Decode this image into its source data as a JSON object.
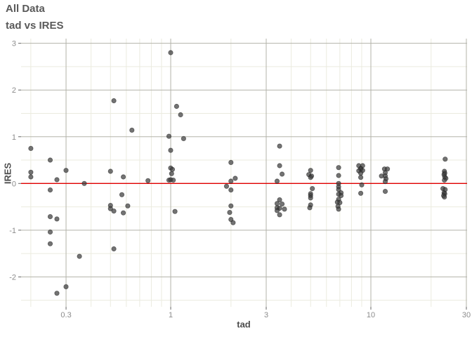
{
  "header": {
    "title": "All Data",
    "subtitle": "tad vs IRES"
  },
  "chart_data": {
    "type": "scatter",
    "title": "All Data",
    "subtitle": "tad vs IRES",
    "xlabel": "tad",
    "ylabel": "IRES",
    "x_scale": "log10",
    "xlim": [
      0.1788,
      30.25
    ],
    "ylim": [
      -2.64,
      3.1
    ],
    "x_ticks": [
      0.3,
      1,
      3,
      10,
      30
    ],
    "x_tick_labels": [
      "0.3",
      "1",
      "3",
      "10",
      "30"
    ],
    "x_minor": [
      0.2,
      0.4,
      0.5,
      0.6,
      0.7,
      0.8,
      0.9,
      2,
      4,
      5,
      6,
      7,
      8,
      9,
      20
    ],
    "y_ticks": [
      3,
      2,
      1,
      0,
      -1,
      -2
    ],
    "y_tick_labels": [
      "3",
      "2",
      "1",
      "0",
      "-1",
      "-2"
    ],
    "y_minor": [
      2.5,
      1.5,
      0.5,
      -0.5,
      -1.5,
      -2.5
    ],
    "grid": "on",
    "legend": "none",
    "reference_line": {
      "y": 0,
      "color": "#e10000"
    },
    "colors": {
      "background": "#ffffff",
      "title": "#595959",
      "axis_label": "#4d4d4d",
      "tick_label": "#8c8c8c",
      "tick_mark": "#666666",
      "grid_major": "#b3b3aa",
      "grid_minor": "#ebebdf",
      "point_fill": "#3d3d3d",
      "point_stroke": "#1f1f1f"
    },
    "point_opacity": 0.72,
    "point_radius": 3.2,
    "points": [
      [
        0.2,
        0.75
      ],
      [
        0.2,
        0.24
      ],
      [
        0.2,
        0.14
      ],
      [
        0.25,
        0.5
      ],
      [
        0.25,
        -0.14
      ],
      [
        0.25,
        -0.71
      ],
      [
        0.25,
        -1.04
      ],
      [
        0.25,
        -1.29
      ],
      [
        0.27,
        0.08
      ],
      [
        0.27,
        -0.76
      ],
      [
        0.27,
        -2.35
      ],
      [
        0.3,
        0.28
      ],
      [
        0.3,
        -2.21
      ],
      [
        0.35,
        -1.56
      ],
      [
        0.37,
        0.0
      ],
      [
        0.5,
        0.26
      ],
      [
        0.5,
        -0.47
      ],
      [
        0.5,
        -0.54
      ],
      [
        0.52,
        1.77
      ],
      [
        0.52,
        -0.59
      ],
      [
        0.52,
        -1.4
      ],
      [
        0.57,
        -0.24
      ],
      [
        0.58,
        0.14
      ],
      [
        0.58,
        -0.63
      ],
      [
        0.61,
        -0.48
      ],
      [
        0.64,
        1.14
      ],
      [
        0.77,
        0.06
      ],
      [
        0.98,
        1.01
      ],
      [
        1.0,
        2.8
      ],
      [
        1.0,
        0.71
      ],
      [
        1.0,
        0.33
      ],
      [
        1.02,
        0.3
      ],
      [
        1.01,
        0.21
      ],
      [
        0.98,
        0.07
      ],
      [
        1.0,
        0.08
      ],
      [
        1.03,
        0.07
      ],
      [
        1.05,
        -0.6
      ],
      [
        1.07,
        1.65
      ],
      [
        1.12,
        1.47
      ],
      [
        1.16,
        0.96
      ],
      [
        2.0,
        0.45
      ],
      [
        2.1,
        0.11
      ],
      [
        2.0,
        0.05
      ],
      [
        1.9,
        -0.06
      ],
      [
        2.0,
        -0.14
      ],
      [
        2.0,
        -0.48
      ],
      [
        1.97,
        -0.62
      ],
      [
        2.0,
        -0.77
      ],
      [
        2.05,
        -0.84
      ],
      [
        3.5,
        0.8
      ],
      [
        3.5,
        0.38
      ],
      [
        3.6,
        0.2
      ],
      [
        3.4,
        0.05
      ],
      [
        3.5,
        -0.35
      ],
      [
        3.4,
        -0.43
      ],
      [
        3.6,
        -0.44
      ],
      [
        3.4,
        -0.52
      ],
      [
        3.5,
        -0.53
      ],
      [
        3.4,
        -0.58
      ],
      [
        3.7,
        -0.55
      ],
      [
        3.5,
        -0.67
      ],
      [
        5.0,
        0.28
      ],
      [
        4.9,
        0.19
      ],
      [
        5.05,
        0.16
      ],
      [
        5.0,
        0.13
      ],
      [
        5.1,
        -0.11
      ],
      [
        5.0,
        -0.22
      ],
      [
        5.0,
        -0.26
      ],
      [
        5.0,
        -0.31
      ],
      [
        5.0,
        -0.46
      ],
      [
        4.95,
        -0.52
      ],
      [
        6.9,
        0.34
      ],
      [
        6.9,
        0.17
      ],
      [
        6.9,
        0.0
      ],
      [
        6.9,
        -0.07
      ],
      [
        6.9,
        -0.13
      ],
      [
        7.1,
        -0.2
      ],
      [
        6.9,
        -0.23
      ],
      [
        7.1,
        -0.26
      ],
      [
        6.9,
        -0.34
      ],
      [
        6.8,
        -0.4
      ],
      [
        7.0,
        -0.41
      ],
      [
        6.85,
        -0.49
      ],
      [
        6.9,
        -0.55
      ],
      [
        8.7,
        0.38
      ],
      [
        9.1,
        0.38
      ],
      [
        8.9,
        0.32
      ],
      [
        8.9,
        0.31
      ],
      [
        8.7,
        0.27
      ],
      [
        9.1,
        0.28
      ],
      [
        8.9,
        0.22
      ],
      [
        8.9,
        0.13
      ],
      [
        9.0,
        -0.03
      ],
      [
        8.9,
        -0.21
      ],
      [
        11.7,
        0.31
      ],
      [
        12.1,
        0.31
      ],
      [
        11.8,
        0.23
      ],
      [
        11.3,
        0.16
      ],
      [
        11.8,
        0.16
      ],
      [
        11.9,
        0.1
      ],
      [
        11.8,
        0.04
      ],
      [
        11.8,
        -0.17
      ],
      [
        23.5,
        0.52
      ],
      [
        23.3,
        0.26
      ],
      [
        23.4,
        0.22
      ],
      [
        23.2,
        0.19
      ],
      [
        23.4,
        0.14
      ],
      [
        23.7,
        0.11
      ],
      [
        23.3,
        0.07
      ],
      [
        22.9,
        -0.11
      ],
      [
        23.5,
        -0.13
      ],
      [
        23.2,
        -0.2
      ],
      [
        23.4,
        -0.22
      ],
      [
        23.1,
        -0.26
      ],
      [
        23.3,
        -0.29
      ]
    ]
  }
}
